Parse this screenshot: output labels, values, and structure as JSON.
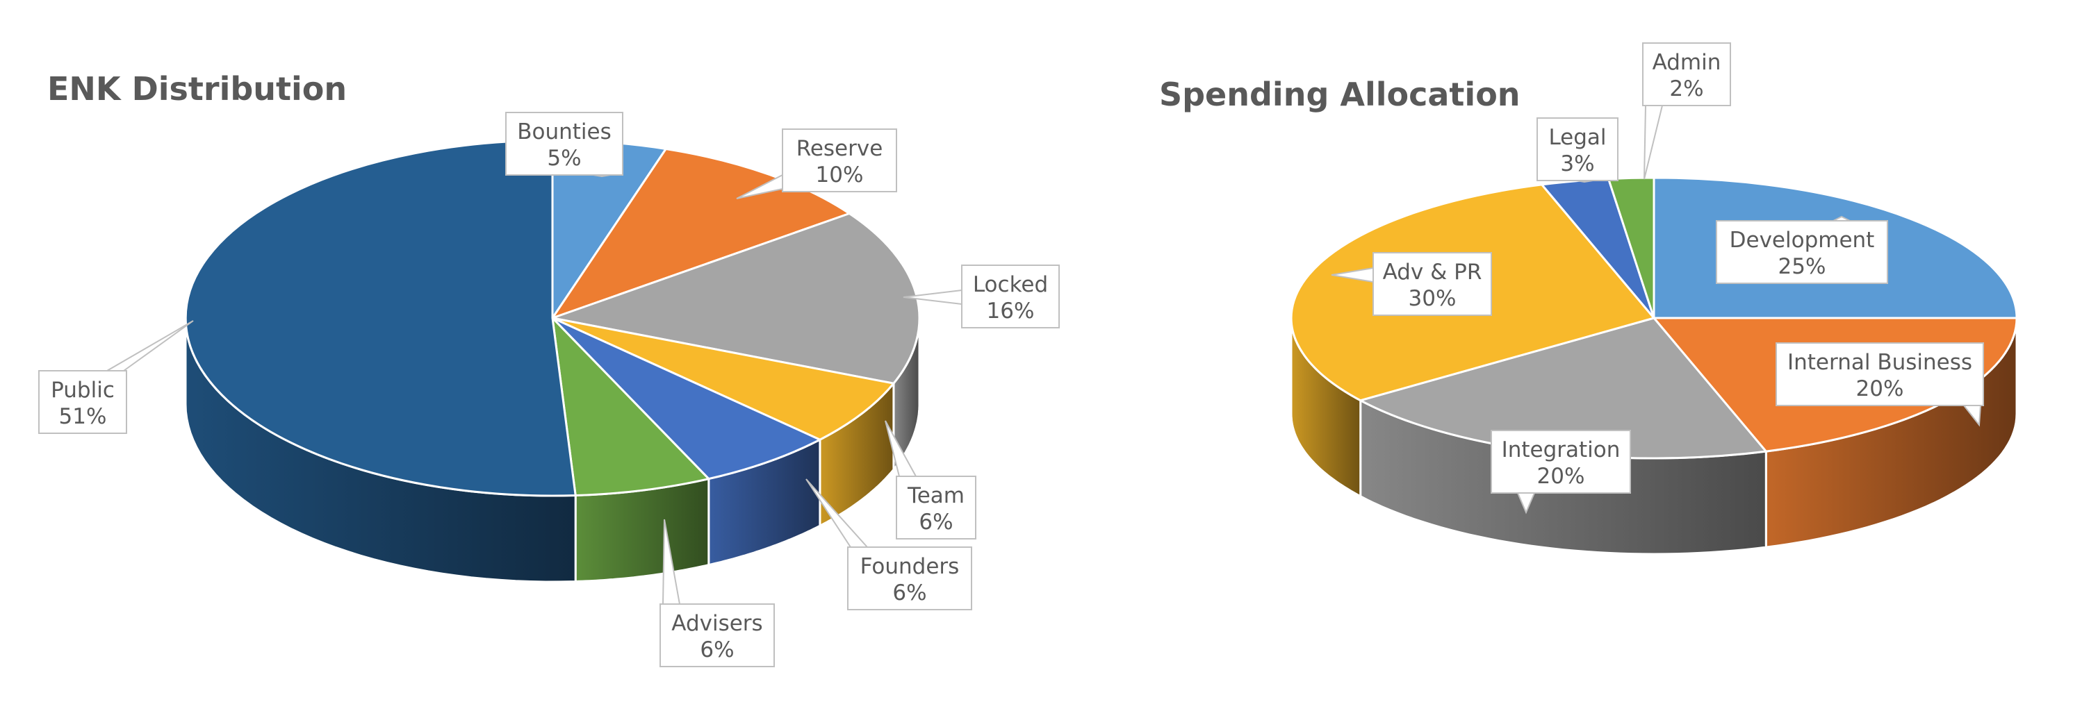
{
  "chart_data": [
    {
      "type": "pie",
      "style": "3d",
      "title": "ENK Distribution",
      "slices": [
        {
          "label": "Bounties",
          "value": 5,
          "display": "5%",
          "color": "#5b9bd5"
        },
        {
          "label": "Reserve",
          "value": 10,
          "display": "10%",
          "color": "#ed7d31"
        },
        {
          "label": "Locked",
          "value": 16,
          "display": "16%",
          "color": "#a5a5a5"
        },
        {
          "label": "Team",
          "value": 6,
          "display": "6%",
          "color": "#f8b92b"
        },
        {
          "label": "Founders",
          "value": 6,
          "display": "6%",
          "color": "#4472c4"
        },
        {
          "label": "Advisers",
          "value": 6,
          "display": "6%",
          "color": "#70ad47"
        },
        {
          "label": "Public",
          "value": 51,
          "display": "51%",
          "color": "#255e91"
        }
      ]
    },
    {
      "type": "pie",
      "style": "3d",
      "title": "Spending Allocation",
      "slices": [
        {
          "label": "Development",
          "value": 25,
          "display": "25%",
          "color": "#5b9bd5"
        },
        {
          "label": "Internal Business",
          "value": 20,
          "display": "20%",
          "color": "#ed7d31"
        },
        {
          "label": "Integration",
          "value": 20,
          "display": "20%",
          "color": "#a5a5a5"
        },
        {
          "label": "Adv & PR",
          "value": 30,
          "display": "30%",
          "color": "#f8b92b"
        },
        {
          "label": "Legal",
          "value": 3,
          "display": "3%",
          "color": "#4472c4"
        },
        {
          "label": "Admin",
          "value": 2,
          "display": "2%",
          "color": "#70ad47"
        }
      ]
    }
  ]
}
